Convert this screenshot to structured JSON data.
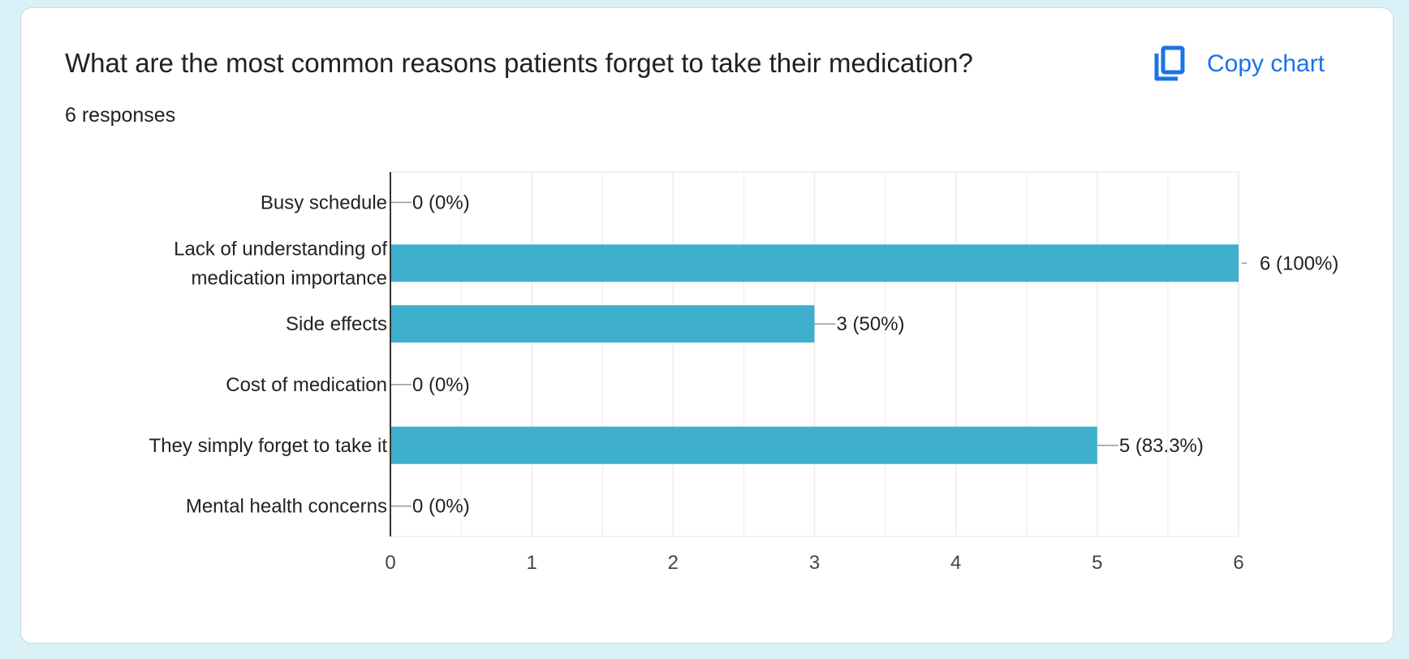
{
  "card": {
    "title": "What are the most common reasons patients forget to take their medication?",
    "responses": "6 responses",
    "copy_label": "Copy chart",
    "copy_icon": "copy-icon",
    "accent": "#1a73e8"
  },
  "chart_data": {
    "type": "bar",
    "orientation": "horizontal",
    "categories": [
      "Busy schedule",
      "Lack of understanding of medication importance",
      "Side effects",
      "Cost of medication",
      "They simply forget to take it",
      "Mental health concerns"
    ],
    "category_lines": [
      [
        "Busy schedule"
      ],
      [
        "Lack of understanding of",
        "medication importance"
      ],
      [
        "Side effects"
      ],
      [
        "Cost of medication"
      ],
      [
        "They simply forget to take it"
      ],
      [
        "Mental health concerns"
      ]
    ],
    "values": [
      0,
      6,
      3,
      0,
      5,
      0
    ],
    "data_labels": [
      "0 (0%)",
      "6 (100%)",
      "3 (50%)",
      "0 (0%)",
      "5 (83.3%)",
      "0 (0%)"
    ],
    "xlim": [
      0,
      6
    ],
    "xticks": [
      "0",
      "1",
      "2",
      "3",
      "4",
      "5",
      "6"
    ],
    "grid": true,
    "bar_color": "#3eafcd"
  }
}
